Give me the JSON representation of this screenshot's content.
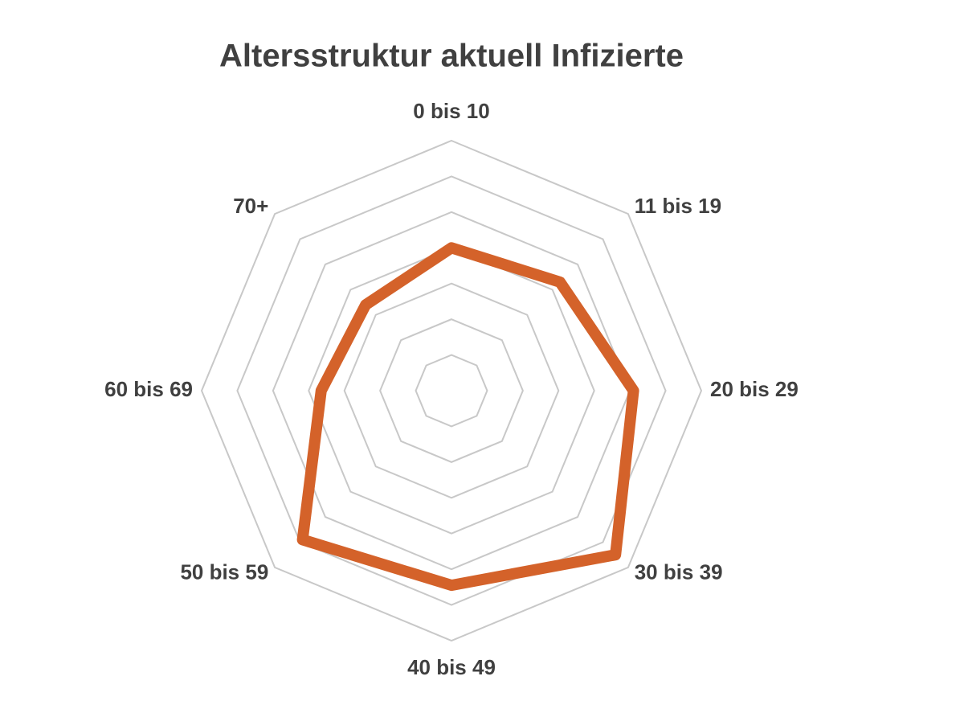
{
  "chart_data": {
    "type": "radar",
    "title": "Altersstruktur aktuell Infizierte",
    "categories": [
      "0 bis 10",
      "11 bis 19",
      "20 bis 29",
      "30 bis 39",
      "40 bis 49",
      "50 bis 59",
      "60 bis 69",
      "70+"
    ],
    "values": [
      4.0,
      4.3,
      5.1,
      6.5,
      5.45,
      5.9,
      3.65,
      3.4
    ],
    "color": "#d4622a",
    "ylim": [
      0,
      7
    ],
    "yticks": [
      1,
      2,
      3,
      4,
      5,
      6,
      7
    ],
    "grid": true
  }
}
